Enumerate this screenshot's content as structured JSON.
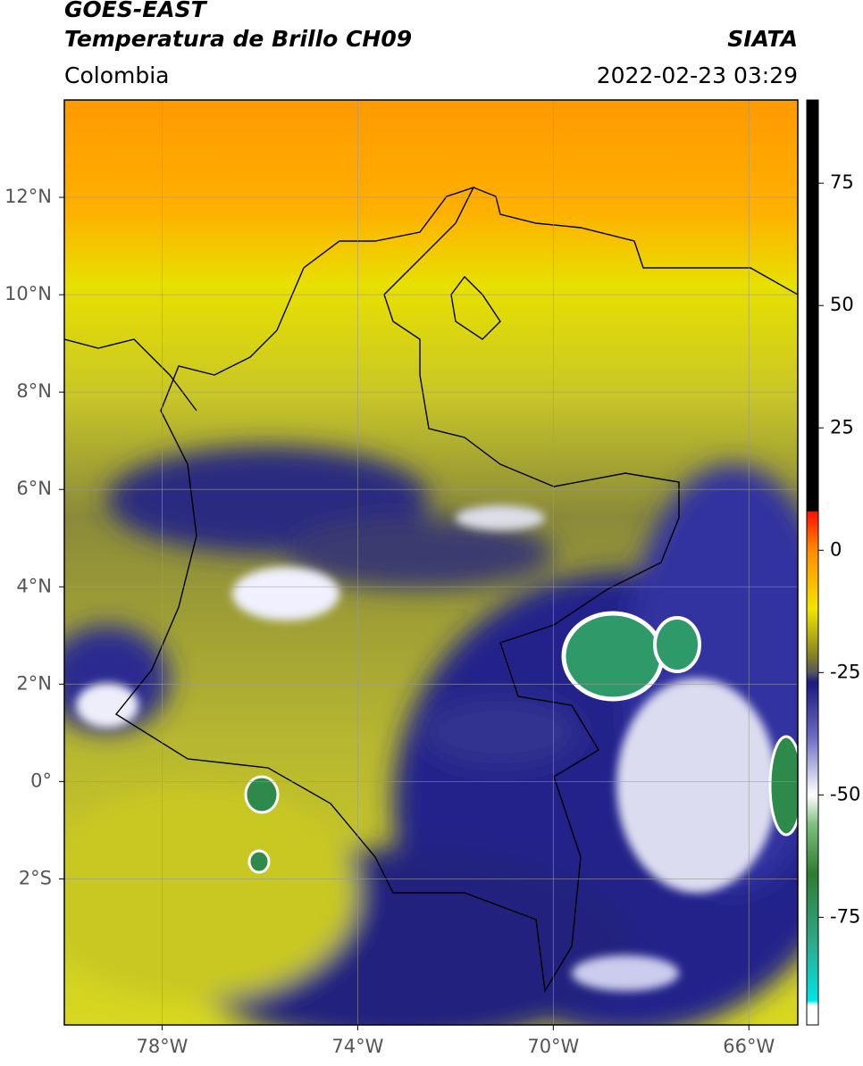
{
  "header": {
    "source": "GOES-EAST",
    "title": "Temperatura de Brillo CH09",
    "agency": "SIATA",
    "region": "Colombia",
    "datetime": "2022-02-23 03:29"
  },
  "map": {
    "xlim": [
      -80,
      -65
    ],
    "ylim": [
      -5,
      14
    ],
    "xticks": [
      {
        "value": -78,
        "label": "78°W"
      },
      {
        "value": -74,
        "label": "74°W"
      },
      {
        "value": -70,
        "label": "70°W"
      },
      {
        "value": -66,
        "label": "66°W"
      }
    ],
    "yticks": [
      {
        "value": 12,
        "label": "12°N"
      },
      {
        "value": 10,
        "label": "10°N"
      },
      {
        "value": 8,
        "label": "8°N"
      },
      {
        "value": 6,
        "label": "6°N"
      },
      {
        "value": 4,
        "label": "4°N"
      },
      {
        "value": 2,
        "label": "2°N"
      },
      {
        "value": 0,
        "label": "0°"
      },
      {
        "value": -2,
        "label": "2°S"
      }
    ],
    "grid": true
  },
  "colorbar": {
    "lim": [
      -97,
      92
    ],
    "ticks": [
      75,
      50,
      25,
      0,
      -25,
      -50,
      -75
    ],
    "stops": [
      {
        "value": 92,
        "color": "#000000"
      },
      {
        "value": 8,
        "color": "#000000"
      },
      {
        "value": 7.9,
        "color": "#ff1000"
      },
      {
        "value": 0,
        "color": "#ff8c00"
      },
      {
        "value": -12,
        "color": "#f2e600"
      },
      {
        "value": -21,
        "color": "#8a8a20"
      },
      {
        "value": -25,
        "color": "#555560"
      },
      {
        "value": -27,
        "color": "#1a1a80"
      },
      {
        "value": -38,
        "color": "#6a6ac0"
      },
      {
        "value": -50,
        "color": "#ffffff"
      },
      {
        "value": -56,
        "color": "#7fbf7f"
      },
      {
        "value": -66,
        "color": "#2e7d32"
      },
      {
        "value": -80,
        "color": "#2fa88a"
      },
      {
        "value": -92,
        "color": "#00e5e5"
      },
      {
        "value": -93,
        "color": "#ffffff"
      },
      {
        "value": -97,
        "color": "#ffffff"
      }
    ]
  }
}
